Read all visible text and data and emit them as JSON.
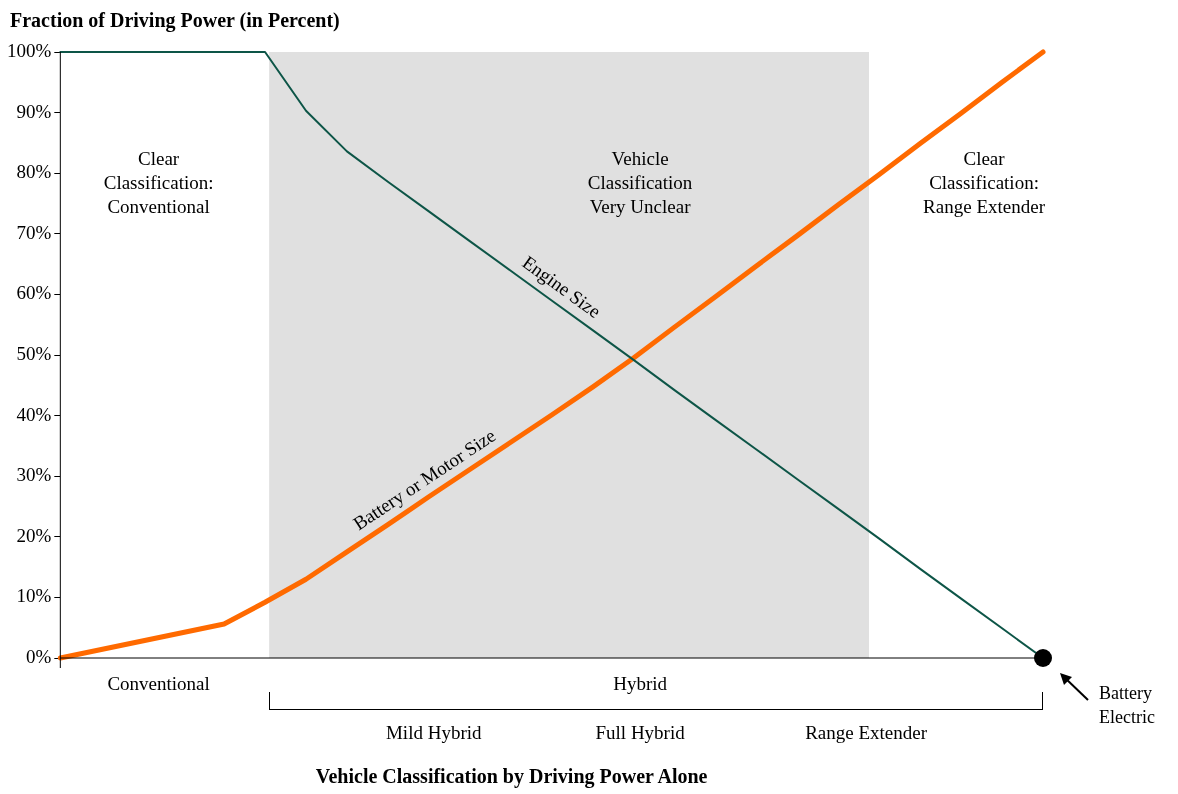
{
  "chart_data": {
    "type": "line",
    "title": "Vehicle Classification by Driving Power Alone",
    "ylabel": "Fraction of Driving Power (in Percent)",
    "categories": [
      null,
      null,
      null,
      null,
      null,
      null,
      null,
      null,
      null,
      null,
      null,
      null,
      null,
      null,
      null,
      null,
      null,
      null,
      null,
      null,
      null,
      null,
      null,
      null,
      null
    ],
    "ylim": [
      0,
      100
    ],
    "yticks": [
      {
        "value": 0,
        "label": "0%"
      },
      {
        "value": 10,
        "label": "10%"
      },
      {
        "value": 20,
        "label": "20%"
      },
      {
        "value": 30,
        "label": "30%"
      },
      {
        "value": 40,
        "label": "40%"
      },
      {
        "value": 50,
        "label": "50%"
      },
      {
        "value": 60,
        "label": "60%"
      },
      {
        "value": 70,
        "label": "70%"
      },
      {
        "value": 80,
        "label": "80%"
      },
      {
        "value": 90,
        "label": "90%"
      },
      {
        "value": 100,
        "label": "100%"
      }
    ],
    "tick_labels": "y",
    "marker": "none",
    "line_style": "solid",
    "series": [
      {
        "name": "Engine Size",
        "color": "#0d5547",
        "values": [
          100,
          100,
          100,
          100,
          100,
          100,
          90.3,
          83.6,
          78.6,
          73.7,
          68.8,
          63.9,
          59,
          54.1,
          49.2,
          44.2,
          39.3,
          34.4,
          29.5,
          24.6,
          19.7,
          14.7,
          9.8,
          4.9,
          0
        ]
      },
      {
        "name": "Battery or Motor Size",
        "color": "#ff6a00",
        "values": [
          0,
          1.4,
          2.8,
          4.2,
          5.6,
          9.2,
          13,
          17.5,
          22,
          26.6,
          31.1,
          35.6,
          40.1,
          44.7,
          49.5,
          54.6,
          59.6,
          64.7,
          69.7,
          74.8,
          79.8,
          84.9,
          89.9,
          95,
          100
        ]
      }
    ],
    "annotations": [
      "Vehicle Classification Very Unclear",
      "Clear Classification: Conventional",
      "Clear Classification: Range Extender",
      "Battery Electric",
      "Conventional",
      "Hybrid",
      "Mild Hybrid",
      "Full Hybrid",
      "Range Extender"
    ]
  }
}
